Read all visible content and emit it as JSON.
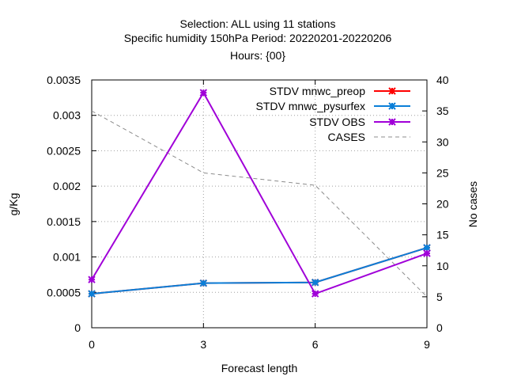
{
  "chart_data": {
    "type": "line",
    "title_lines": [
      "Selection: ALL using     11 stations",
      "Specific humidity 150hPa   Period: 20220201-20220206",
      "Hours: {00}"
    ],
    "xlabel": "Forecast length",
    "ylabel": "g/Kg",
    "y2label": "No cases",
    "x": [
      0,
      3,
      6,
      9
    ],
    "xlim": [
      0,
      9
    ],
    "ylim": [
      0,
      0.0035
    ],
    "y2lim": [
      0,
      40
    ],
    "xticks": [
      "0",
      "3",
      "6",
      "9"
    ],
    "yticks": [
      "0",
      "0.0005",
      "0.001",
      "0.0015",
      "0.002",
      "0.0025",
      "0.003",
      "0.0035"
    ],
    "y2ticks": [
      "0",
      "5",
      "10",
      "15",
      "20",
      "25",
      "30",
      "35",
      "40"
    ],
    "grid": true,
    "legend_position": "top-right",
    "series": [
      {
        "name": "STDV mnwc_preop",
        "axis": "y",
        "color": "#ff0000",
        "style": "solid",
        "marker": "star",
        "values": [
          0.00048,
          0.00063,
          0.00064,
          0.00113
        ]
      },
      {
        "name": "STDV mnwc_pysurfex",
        "axis": "y",
        "color": "#0a7fd8",
        "style": "solid",
        "marker": "star",
        "values": [
          0.00048,
          0.00063,
          0.00064,
          0.00113
        ]
      },
      {
        "name": "STDV OBS",
        "axis": "y",
        "color": "#a000d8",
        "style": "solid",
        "marker": "star",
        "values": [
          0.00068,
          0.00332,
          0.00048,
          0.00105
        ]
      },
      {
        "name": "CASES",
        "axis": "y2",
        "color": "#8c8c8c",
        "style": "dashed",
        "marker": "none",
        "values": [
          35,
          25,
          23,
          5
        ]
      }
    ]
  }
}
